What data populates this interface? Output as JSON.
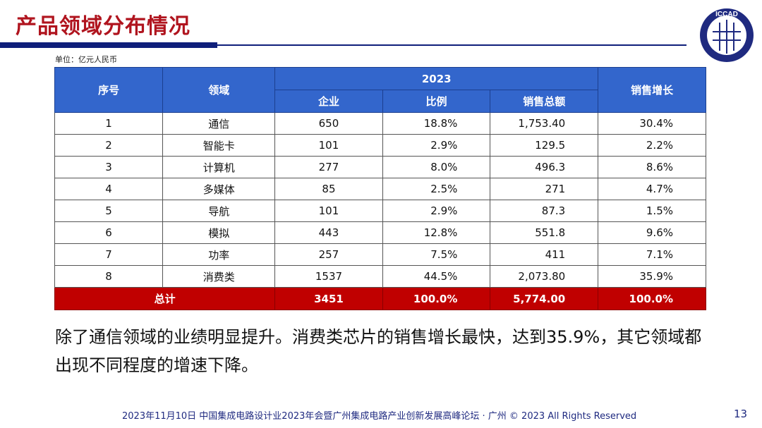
{
  "title": "产品领域分布情况",
  "logo_text": "ICCAD",
  "unit": "单位：亿元人民币",
  "table": {
    "headers": {
      "index": "序号",
      "field": "领域",
      "year": "2023",
      "companies": "企业",
      "ratio": "比例",
      "sales": "销售总额",
      "growth": "销售增长"
    },
    "rows": [
      [
        "1",
        "通信",
        "650",
        "18.8%",
        "1,753.40",
        "30.4%"
      ],
      [
        "2",
        "智能卡",
        "101",
        "2.9%",
        "129.5",
        "2.2%"
      ],
      [
        "3",
        "计算机",
        "277",
        "8.0%",
        "496.3",
        "8.6%"
      ],
      [
        "4",
        "多媒体",
        "85",
        "2.5%",
        "271",
        "4.7%"
      ],
      [
        "5",
        "导航",
        "101",
        "2.9%",
        "87.3",
        "1.5%"
      ],
      [
        "6",
        "模拟",
        "443",
        "12.8%",
        "551.8",
        "9.6%"
      ],
      [
        "7",
        "功率",
        "257",
        "7.5%",
        "411",
        "7.1%"
      ],
      [
        "8",
        "消费类",
        "1537",
        "44.5%",
        "2,073.80",
        "35.9%"
      ]
    ],
    "total": [
      "总计",
      "3451",
      "100.0%",
      "5,774.00",
      "100.0%"
    ]
  },
  "paragraph": "除了通信领域的业绩明显提升。消费类芯片的销售增长最快，达到35.9%，其它领域都出现不同程度的增速下降。",
  "footer": "2023年11月10日 中国集成电路设计业2023年会暨广州集成电路产业创新发展高峰论坛 · 广州 © 2023 All Rights Reserved",
  "page_number": "13",
  "colors": {
    "title": "#b0141e",
    "header": "#3366cc",
    "total": "#c00000",
    "rule": "#0f1f7a"
  }
}
